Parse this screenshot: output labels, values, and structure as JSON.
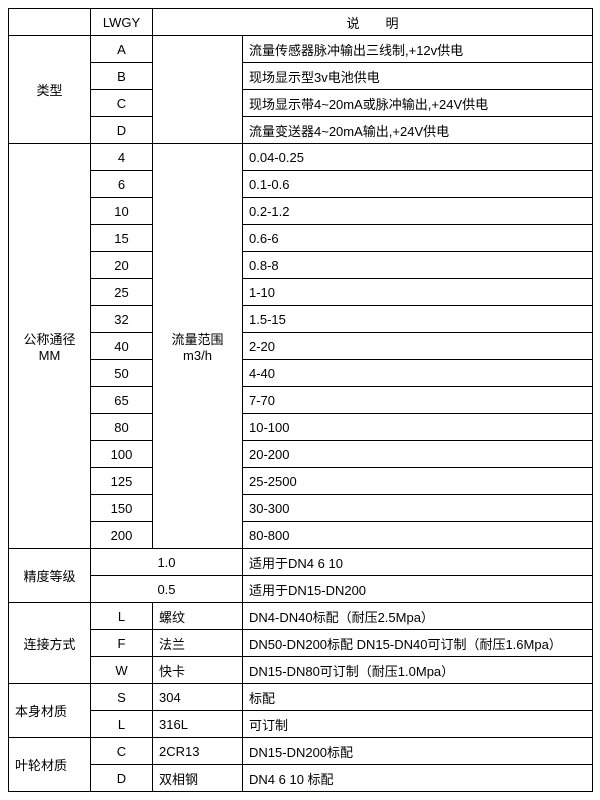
{
  "hdr": {
    "lwgy": "LWGY",
    "desc_label": "说　　明"
  },
  "type": {
    "label": "类型",
    "rows": [
      {
        "code": "A",
        "desc": "流量传感器脉冲输出三线制,+12v供电"
      },
      {
        "code": "B",
        "desc": "现场显示型3v电池供电"
      },
      {
        "code": "C",
        "desc": "现场显示带4~20mA或脉冲输出,+24V供电"
      },
      {
        "code": "D",
        "desc": "流量变送器4~20mA输出,+24V供电"
      }
    ]
  },
  "dn": {
    "label_l1": "公称通径",
    "label_l2": "MM",
    "range_l1": "流量范围",
    "range_l2": "m3/h",
    "rows": [
      {
        "code": "4",
        "range": "0.04-0.25"
      },
      {
        "code": "6",
        "range": "0.1-0.6"
      },
      {
        "code": "10",
        "range": "0.2-1.2"
      },
      {
        "code": "15",
        "range": "0.6-6"
      },
      {
        "code": "20",
        "range": "0.8-8"
      },
      {
        "code": "25",
        "range": "1-10"
      },
      {
        "code": "32",
        "range": "1.5-15"
      },
      {
        "code": "40",
        "range": "2-20"
      },
      {
        "code": "50",
        "range": "4-40"
      },
      {
        "code": "65",
        "range": "7-70"
      },
      {
        "code": "80",
        "range": "10-100"
      },
      {
        "code": "100",
        "range": "20-200"
      },
      {
        "code": "125",
        "range": "25-2500"
      },
      {
        "code": "150",
        "range": "30-300"
      },
      {
        "code": "200",
        "range": "80-800"
      }
    ]
  },
  "acc": {
    "label": "精度等级",
    "rows": [
      {
        "val": "1.0",
        "desc": "适用于DN4  6  10"
      },
      {
        "val": "0.5",
        "desc": "适用于DN15-DN200"
      }
    ]
  },
  "conn": {
    "label": "连接方式",
    "rows": [
      {
        "code": "L",
        "name": "螺纹",
        "desc": "DN4-DN40标配（耐压2.5Mpa）"
      },
      {
        "code": "F",
        "name": "法兰",
        "desc": "DN50-DN200标配 DN15-DN40可订制（耐压1.6Mpa）"
      },
      {
        "code": "W",
        "name": "快卡",
        "desc": "DN15-DN80可订制（耐压1.0Mpa）"
      }
    ]
  },
  "bodymat": {
    "label": "本身材质",
    "rows": [
      {
        "code": "S",
        "name": "304",
        "desc": "标配"
      },
      {
        "code": "L",
        "name": "316L",
        "desc": "可订制"
      }
    ]
  },
  "impmat": {
    "label": "叶轮材质",
    "rows": [
      {
        "code": "C",
        "name": "2CR13",
        "desc": "DN15-DN200标配"
      },
      {
        "code": "D",
        "name": "双相钢",
        "desc": "DN4 6 10 标配"
      }
    ]
  }
}
